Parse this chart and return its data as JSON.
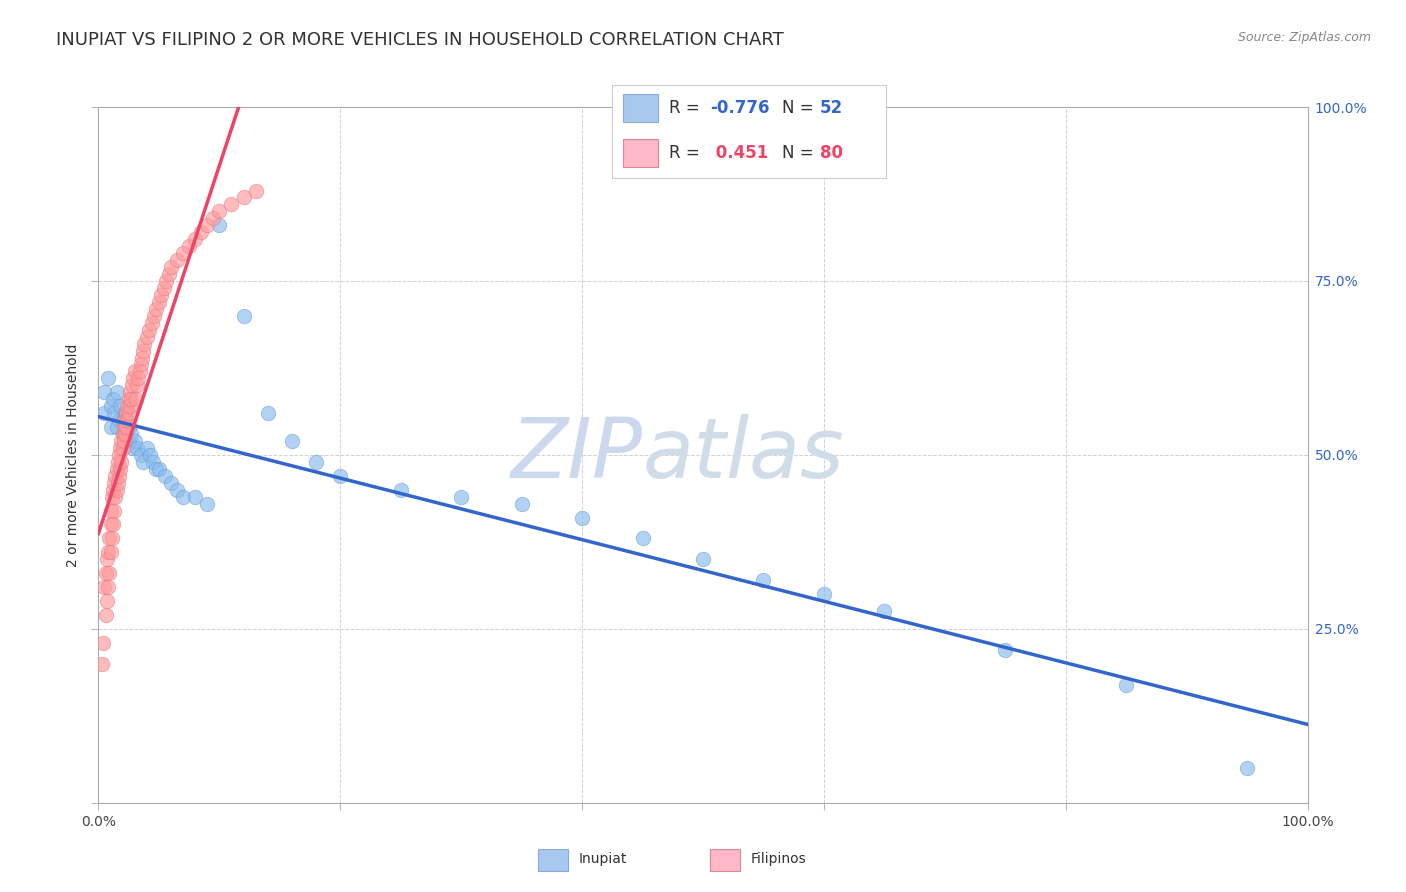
{
  "title": "INUPIAT VS FILIPINO 2 OR MORE VEHICLES IN HOUSEHOLD CORRELATION CHART",
  "source": "Source: ZipAtlas.com",
  "ylabel": "2 or more Vehicles in Household",
  "legend1_color": "#a8c8f0",
  "legend2_color": "#ffb8c8",
  "inupiat_color": "#88bbee",
  "filipino_color": "#ff9999",
  "trend_inupiat_color": "#3366cc",
  "trend_filipino_color": "#ee4466",
  "watermark_zip": "ZIP",
  "watermark_atlas": "atlas",
  "inupiat_x": [
    0.005,
    0.005,
    0.008,
    0.01,
    0.01,
    0.012,
    0.013,
    0.015,
    0.015,
    0.017,
    0.018,
    0.02,
    0.02,
    0.022,
    0.023,
    0.025,
    0.025,
    0.027,
    0.028,
    0.03,
    0.032,
    0.035,
    0.037,
    0.04,
    0.043,
    0.045,
    0.048,
    0.05,
    0.055,
    0.06,
    0.065,
    0.07,
    0.08,
    0.09,
    0.1,
    0.12,
    0.14,
    0.16,
    0.18,
    0.2,
    0.25,
    0.3,
    0.35,
    0.4,
    0.45,
    0.5,
    0.55,
    0.6,
    0.65,
    0.75,
    0.85,
    0.95
  ],
  "inupiat_y": [
    0.59,
    0.56,
    0.61,
    0.57,
    0.54,
    0.58,
    0.56,
    0.59,
    0.54,
    0.55,
    0.57,
    0.55,
    0.53,
    0.56,
    0.53,
    0.54,
    0.52,
    0.53,
    0.51,
    0.52,
    0.51,
    0.5,
    0.49,
    0.51,
    0.5,
    0.49,
    0.48,
    0.48,
    0.47,
    0.46,
    0.45,
    0.44,
    0.44,
    0.43,
    0.83,
    0.7,
    0.56,
    0.52,
    0.49,
    0.47,
    0.45,
    0.44,
    0.43,
    0.41,
    0.38,
    0.35,
    0.32,
    0.3,
    0.275,
    0.22,
    0.17,
    0.05
  ],
  "filipino_x": [
    0.003,
    0.004,
    0.005,
    0.006,
    0.006,
    0.007,
    0.007,
    0.008,
    0.008,
    0.009,
    0.009,
    0.01,
    0.01,
    0.01,
    0.011,
    0.011,
    0.012,
    0.012,
    0.013,
    0.013,
    0.014,
    0.014,
    0.015,
    0.015,
    0.016,
    0.016,
    0.017,
    0.017,
    0.018,
    0.018,
    0.019,
    0.019,
    0.02,
    0.02,
    0.021,
    0.021,
    0.022,
    0.022,
    0.023,
    0.023,
    0.024,
    0.024,
    0.025,
    0.025,
    0.026,
    0.026,
    0.027,
    0.028,
    0.029,
    0.03,
    0.031,
    0.032,
    0.033,
    0.034,
    0.035,
    0.036,
    0.037,
    0.038,
    0.04,
    0.042,
    0.044,
    0.046,
    0.048,
    0.05,
    0.052,
    0.054,
    0.056,
    0.058,
    0.06,
    0.065,
    0.07,
    0.075,
    0.08,
    0.085,
    0.09,
    0.095,
    0.1,
    0.11,
    0.12,
    0.13
  ],
  "filipino_y": [
    0.2,
    0.23,
    0.31,
    0.27,
    0.33,
    0.29,
    0.35,
    0.31,
    0.36,
    0.33,
    0.38,
    0.36,
    0.4,
    0.42,
    0.38,
    0.44,
    0.4,
    0.45,
    0.42,
    0.46,
    0.44,
    0.47,
    0.45,
    0.48,
    0.46,
    0.49,
    0.47,
    0.5,
    0.48,
    0.51,
    0.49,
    0.52,
    0.51,
    0.53,
    0.52,
    0.54,
    0.53,
    0.55,
    0.54,
    0.56,
    0.55,
    0.57,
    0.56,
    0.58,
    0.57,
    0.59,
    0.58,
    0.6,
    0.61,
    0.62,
    0.58,
    0.6,
    0.61,
    0.62,
    0.63,
    0.64,
    0.65,
    0.66,
    0.67,
    0.68,
    0.69,
    0.7,
    0.71,
    0.72,
    0.73,
    0.74,
    0.75,
    0.76,
    0.77,
    0.78,
    0.79,
    0.8,
    0.81,
    0.82,
    0.83,
    0.84,
    0.85,
    0.86,
    0.87,
    0.88
  ],
  "xlim": [
    0.0,
    1.0
  ],
  "ylim": [
    0.0,
    1.0
  ],
  "grid_color": "#cccccc",
  "background_color": "#ffffff",
  "title_fontsize": 13,
  "axis_label_fontsize": 10,
  "tick_fontsize": 10,
  "watermark_color": "#ccd8ee",
  "watermark_fontsize": 60
}
